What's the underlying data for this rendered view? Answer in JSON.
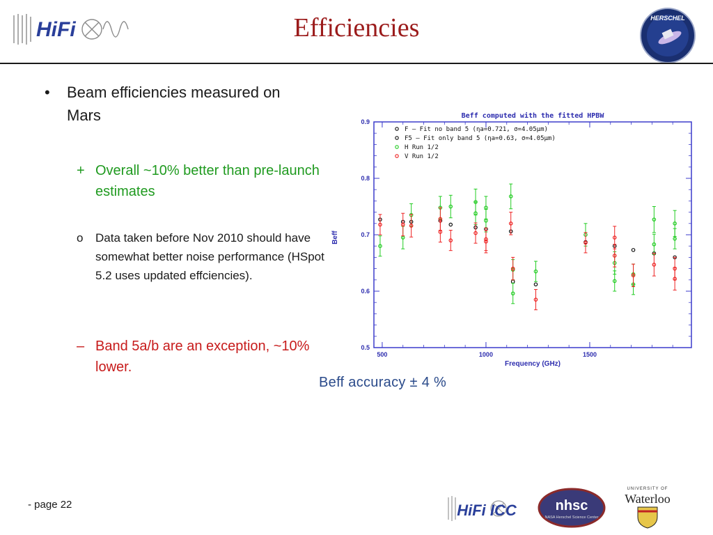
{
  "header": {
    "title": "Efficiencies",
    "hifi_logo_text": "HiFi",
    "herschel_logo_text": "HERSCHEL"
  },
  "bullets": {
    "main_mark": "•",
    "main": "Beam efficiencies measured on Mars",
    "sub1_mark": "+",
    "sub1": "Overall ~10% better than pre-launch estimates",
    "sub2_mark": "o",
    "sub2": "Data taken before Nov 2010 should have somewhat better noise performance (HSpot 5.2 uses updated effciencies).",
    "sub3_mark": "–",
    "sub3": "Band 5a/b are an exception, ~10% lower."
  },
  "caption": "Beff  accuracy ± 4 %",
  "footer": {
    "page": "- page 22",
    "hifi_icc": "HiFi ICC",
    "nhsc": "nhsc",
    "nhsc_sub": "NASA Herschel Science Center",
    "waterloo_top": "UNIVERSITY OF",
    "waterloo": "Waterloo"
  },
  "colors": {
    "title": "#9b1b1b",
    "green": "#1f9a1f",
    "red": "#c71b1b",
    "chart_frame": "#3b3bcc",
    "chart_text": "#2c2cae"
  },
  "chart_data": {
    "type": "scatter",
    "title": "Beff computed with the fitted HPBW",
    "xlabel": "Frequency (GHz)",
    "ylabel": "Beff",
    "xlim": [
      460,
      1990
    ],
    "ylim": [
      0.5,
      0.9
    ],
    "xticks": [
      500,
      1000,
      1500
    ],
    "yticks": [
      0.5,
      0.6,
      0.7,
      0.8,
      0.9
    ],
    "legend_position": "top-left",
    "series": [
      {
        "name": "F  – Fit no band 5  (ηa=0.721, σ=4.05μm)",
        "color": "#111111",
        "error_bars": false,
        "points": [
          [
            490,
            0.727
          ],
          [
            600,
            0.723
          ],
          [
            640,
            0.723
          ],
          [
            780,
            0.725
          ],
          [
            830,
            0.718
          ],
          [
            950,
            0.713
          ],
          [
            1000,
            0.71
          ],
          [
            1120,
            0.706
          ],
          [
            1130,
            0.617
          ],
          [
            1240,
            0.612
          ],
          [
            1480,
            0.687
          ],
          [
            1620,
            0.68
          ],
          [
            1710,
            0.673
          ],
          [
            1810,
            0.667
          ],
          [
            1910,
            0.66
          ]
        ]
      },
      {
        "name": "F5 – Fit only band 5  (ηa=0.63, σ=4.05μm)",
        "color": "#111111",
        "error_bars": false,
        "points": []
      },
      {
        "name": "H Run 1/2",
        "color": "#22cc22",
        "error_bars": true,
        "points": [
          [
            490,
            0.68,
            0.018
          ],
          [
            600,
            0.695,
            0.02
          ],
          [
            640,
            0.735,
            0.02
          ],
          [
            780,
            0.748,
            0.02
          ],
          [
            830,
            0.75,
            0.02
          ],
          [
            950,
            0.758,
            0.023
          ],
          [
            950,
            0.738,
            0.02
          ],
          [
            1000,
            0.748,
            0.02
          ],
          [
            1000,
            0.725,
            0.02
          ],
          [
            1120,
            0.768,
            0.022
          ],
          [
            1130,
            0.638,
            0.018
          ],
          [
            1130,
            0.596,
            0.018
          ],
          [
            1240,
            0.635,
            0.018
          ],
          [
            1480,
            0.7,
            0.02
          ],
          [
            1620,
            0.65,
            0.02
          ],
          [
            1620,
            0.618,
            0.018
          ],
          [
            1710,
            0.63,
            0.018
          ],
          [
            1710,
            0.612,
            0.018
          ],
          [
            1810,
            0.727,
            0.023
          ],
          [
            1810,
            0.683,
            0.018
          ],
          [
            1910,
            0.72,
            0.023
          ],
          [
            1910,
            0.693,
            0.018
          ]
        ]
      },
      {
        "name": "V Run 1/2",
        "color": "#ee2222",
        "error_bars": true,
        "points": [
          [
            490,
            0.718,
            0.018
          ],
          [
            600,
            0.718,
            0.02
          ],
          [
            640,
            0.716,
            0.02
          ],
          [
            780,
            0.728,
            0.02
          ],
          [
            780,
            0.705,
            0.018
          ],
          [
            830,
            0.69,
            0.018
          ],
          [
            950,
            0.703,
            0.018
          ],
          [
            1000,
            0.692,
            0.02
          ],
          [
            1000,
            0.688,
            0.02
          ],
          [
            1120,
            0.72,
            0.02
          ],
          [
            1130,
            0.64,
            0.02
          ],
          [
            1240,
            0.585,
            0.018
          ],
          [
            1480,
            0.686,
            0.018
          ],
          [
            1620,
            0.695,
            0.02
          ],
          [
            1620,
            0.663,
            0.02
          ],
          [
            1710,
            0.628,
            0.02
          ],
          [
            1810,
            0.647,
            0.02
          ],
          [
            1910,
            0.64,
            0.02
          ],
          [
            1910,
            0.622,
            0.02
          ]
        ]
      }
    ]
  }
}
